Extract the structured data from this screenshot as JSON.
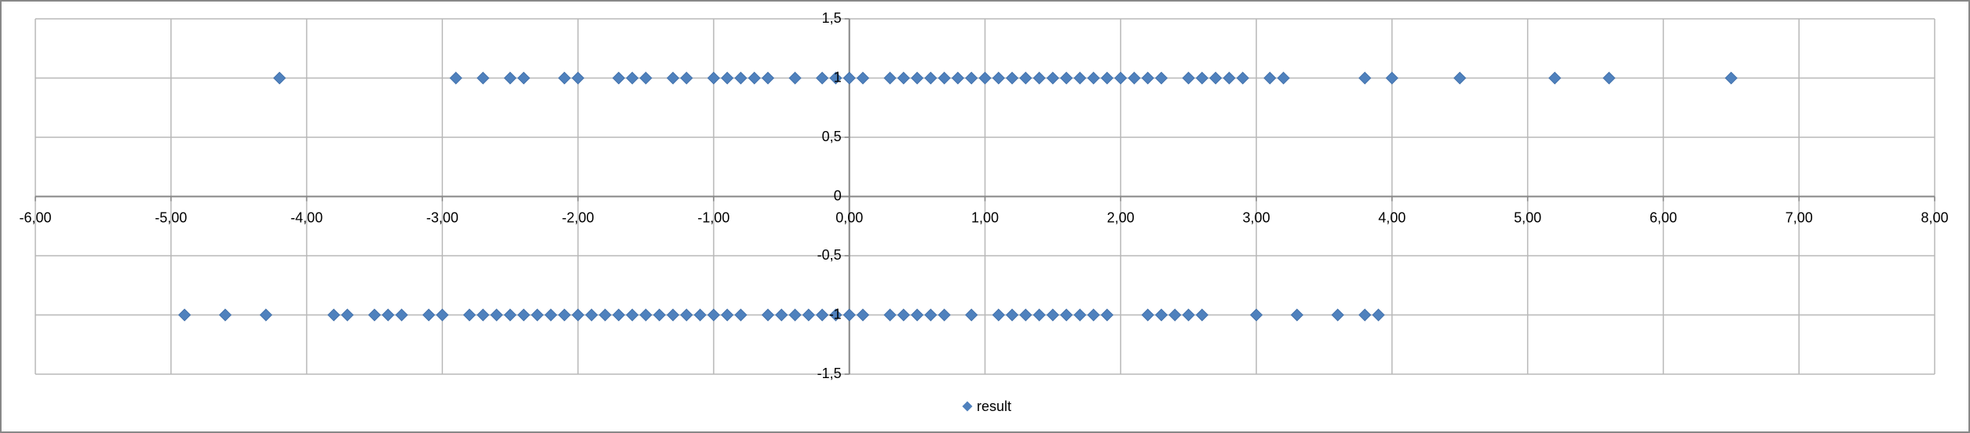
{
  "chart_data": {
    "type": "scatter",
    "series": [
      {
        "name": "result",
        "color": "#4f81bd",
        "x": [
          -4.2,
          -2.9,
          -2.7,
          -2.5,
          -2.4,
          -2.1,
          -2.0,
          -1.7,
          -1.6,
          -1.5,
          -1.3,
          -1.2,
          -1.0,
          -0.9,
          -0.8,
          -0.7,
          -0.6,
          -0.4,
          -0.2,
          -0.1,
          0,
          0.1,
          0.3,
          0.4,
          0.5,
          0.6,
          0.7,
          0.8,
          0.9,
          1.0,
          1.1,
          1.2,
          1.3,
          1.4,
          1.5,
          1.6,
          1.7,
          1.8,
          1.9,
          2.0,
          2.1,
          2.2,
          2.3,
          2.5,
          2.6,
          2.7,
          2.8,
          2.9,
          3.1,
          3.2,
          3.8,
          4.0,
          4.5,
          5.2,
          5.6,
          6.5,
          -4.9,
          -4.6,
          -4.3,
          -3.8,
          -3.7,
          -3.5,
          -3.4,
          -3.3,
          -3.1,
          -3.0,
          -2.8,
          -2.7,
          -2.6,
          -2.5,
          -2.4,
          -2.3,
          -2.2,
          -2.1,
          -2.0,
          -1.9,
          -1.8,
          -1.7,
          -1.6,
          -1.5,
          -1.4,
          -1.3,
          -1.2,
          -1.1,
          -1.0,
          -0.9,
          -0.8,
          -0.6,
          -0.5,
          -0.4,
          -0.3,
          -0.2,
          -0.1,
          0,
          0.1,
          0.3,
          0.4,
          0.5,
          0.6,
          0.7,
          0.9,
          1.1,
          1.2,
          1.3,
          1.4,
          1.5,
          1.6,
          1.7,
          1.8,
          1.9,
          2.2,
          2.3,
          2.4,
          2.5,
          2.6,
          3.0,
          3.3,
          3.6,
          3.8,
          3.9
        ],
        "y": [
          1,
          1,
          1,
          1,
          1,
          1,
          1,
          1,
          1,
          1,
          1,
          1,
          1,
          1,
          1,
          1,
          1,
          1,
          1,
          1,
          1,
          1,
          1,
          1,
          1,
          1,
          1,
          1,
          1,
          1,
          1,
          1,
          1,
          1,
          1,
          1,
          1,
          1,
          1,
          1,
          1,
          1,
          1,
          1,
          1,
          1,
          1,
          1,
          1,
          1,
          1,
          1,
          1,
          1,
          1,
          1,
          -1,
          -1,
          -1,
          -1,
          -1,
          -1,
          -1,
          -1,
          -1,
          -1,
          -1,
          -1,
          -1,
          -1,
          -1,
          -1,
          -1,
          -1,
          -1,
          -1,
          -1,
          -1,
          -1,
          -1,
          -1,
          -1,
          -1,
          -1,
          -1,
          -1,
          -1,
          -1,
          -1,
          -1,
          -1,
          -1,
          -1,
          -1,
          -1,
          -1,
          -1,
          -1,
          -1,
          -1,
          -1,
          -1,
          -1,
          -1,
          -1,
          -1,
          -1,
          -1,
          -1,
          -1,
          -1,
          -1,
          -1,
          -1,
          -1,
          -1,
          -1,
          -1,
          -1,
          -1
        ]
      }
    ],
    "xlim": [
      -6,
      8
    ],
    "ylim": [
      -1.5,
      1.5
    ],
    "xticks": [
      {
        "value": -6,
        "label": "-6,00"
      },
      {
        "value": -5,
        "label": "-5,00"
      },
      {
        "value": -4,
        "label": "-4,00"
      },
      {
        "value": -3,
        "label": "-3,00"
      },
      {
        "value": -2,
        "label": "-2,00"
      },
      {
        "value": -1,
        "label": "-1,00"
      },
      {
        "value": 0,
        "label": "0,00"
      },
      {
        "value": 1,
        "label": "1,00"
      },
      {
        "value": 2,
        "label": "2,00"
      },
      {
        "value": 3,
        "label": "3,00"
      },
      {
        "value": 4,
        "label": "4,00"
      },
      {
        "value": 5,
        "label": "5,00"
      },
      {
        "value": 6,
        "label": "6,00"
      },
      {
        "value": 7,
        "label": "7,00"
      },
      {
        "value": 8,
        "label": "8,00"
      }
    ],
    "yticks": [
      {
        "value": -1.5,
        "label": "-1,5"
      },
      -1,
      {
        "value": -0.5,
        "label": "-0,5"
      },
      0,
      {
        "value": 0.5,
        "label": "0,5"
      },
      1,
      {
        "value": 1.5,
        "label": "1,5"
      }
    ],
    "grid": true,
    "legend": "bottom"
  }
}
